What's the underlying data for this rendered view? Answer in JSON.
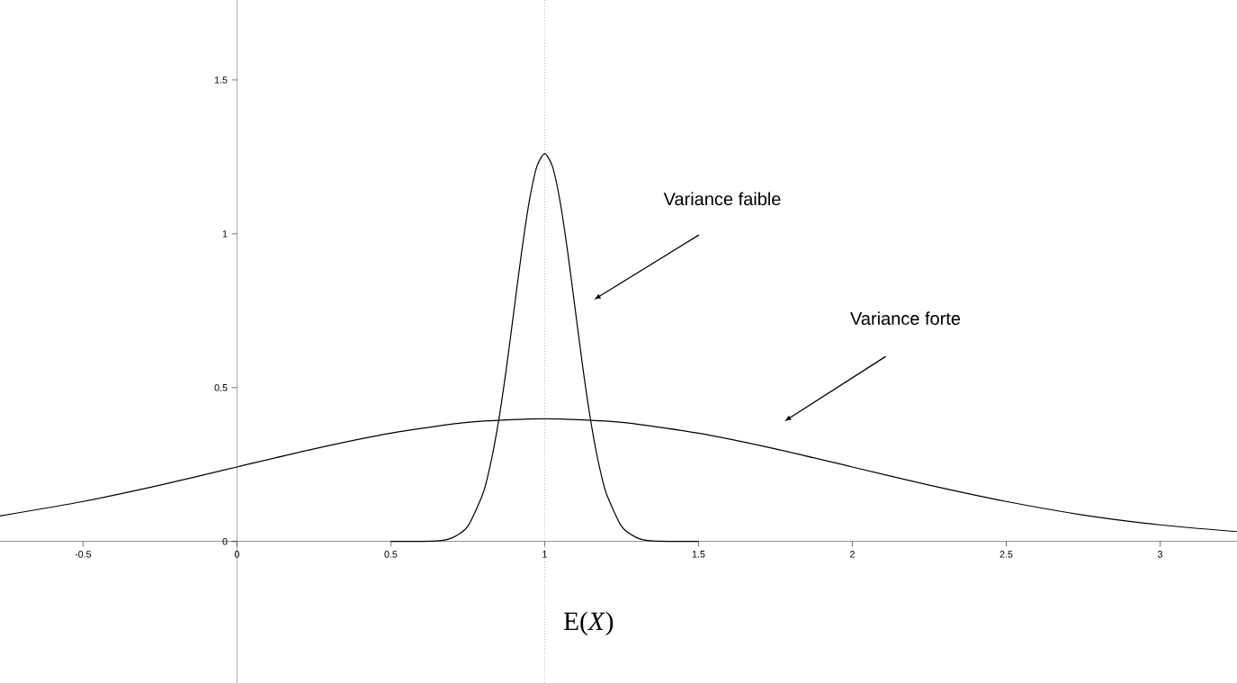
{
  "chart_data": {
    "type": "line",
    "xlim": [
      -0.77,
      3.25
    ],
    "ylim": [
      -0.46,
      1.76
    ],
    "xticks": [
      -0.5,
      0,
      0.5,
      1,
      1.5,
      2,
      2.5,
      3
    ],
    "yticks": [
      0,
      0.5,
      1,
      1.5
    ],
    "marker": "none",
    "annotations": [
      "Variance faible",
      "Variance forte"
    ],
    "ref_lines": [
      {
        "axis": "x",
        "value": 1,
        "label": "E(*X*)",
        "line_style": "dotted"
      }
    ],
    "series": [
      {
        "color": "#000000",
        "x": [
          -0.77,
          -0.5,
          -0.25,
          0,
          0.25,
          0.5,
          0.75,
          1,
          1.25,
          1.5,
          1.75,
          2,
          2.25,
          2.5,
          2.75,
          3,
          3.25
        ],
        "values": [
          0.083,
          0.13,
          0.183,
          0.242,
          0.301,
          0.352,
          0.387,
          0.399,
          0.387,
          0.352,
          0.301,
          0.242,
          0.183,
          0.13,
          0.086,
          0.054,
          0.032
        ]
      },
      {
        "color": "#000000",
        "x": [
          0.5,
          0.65,
          0.7,
          0.75,
          0.8,
          0.825,
          0.85,
          0.875,
          0.9,
          0.925,
          0.95,
          0.975,
          1,
          1.025,
          1.05,
          1.075,
          1.1,
          1.125,
          1.15,
          1.175,
          1.2,
          1.25,
          1.3,
          1.35,
          1.5
        ],
        "values": [
          0,
          0.002,
          0.012,
          0.049,
          0.157,
          0.256,
          0.39,
          0.558,
          0.749,
          0.94,
          1.106,
          1.22,
          1.26,
          1.22,
          1.106,
          0.94,
          0.749,
          0.558,
          0.39,
          0.256,
          0.157,
          0.049,
          0.012,
          0.002,
          0
        ]
      }
    ]
  }
}
